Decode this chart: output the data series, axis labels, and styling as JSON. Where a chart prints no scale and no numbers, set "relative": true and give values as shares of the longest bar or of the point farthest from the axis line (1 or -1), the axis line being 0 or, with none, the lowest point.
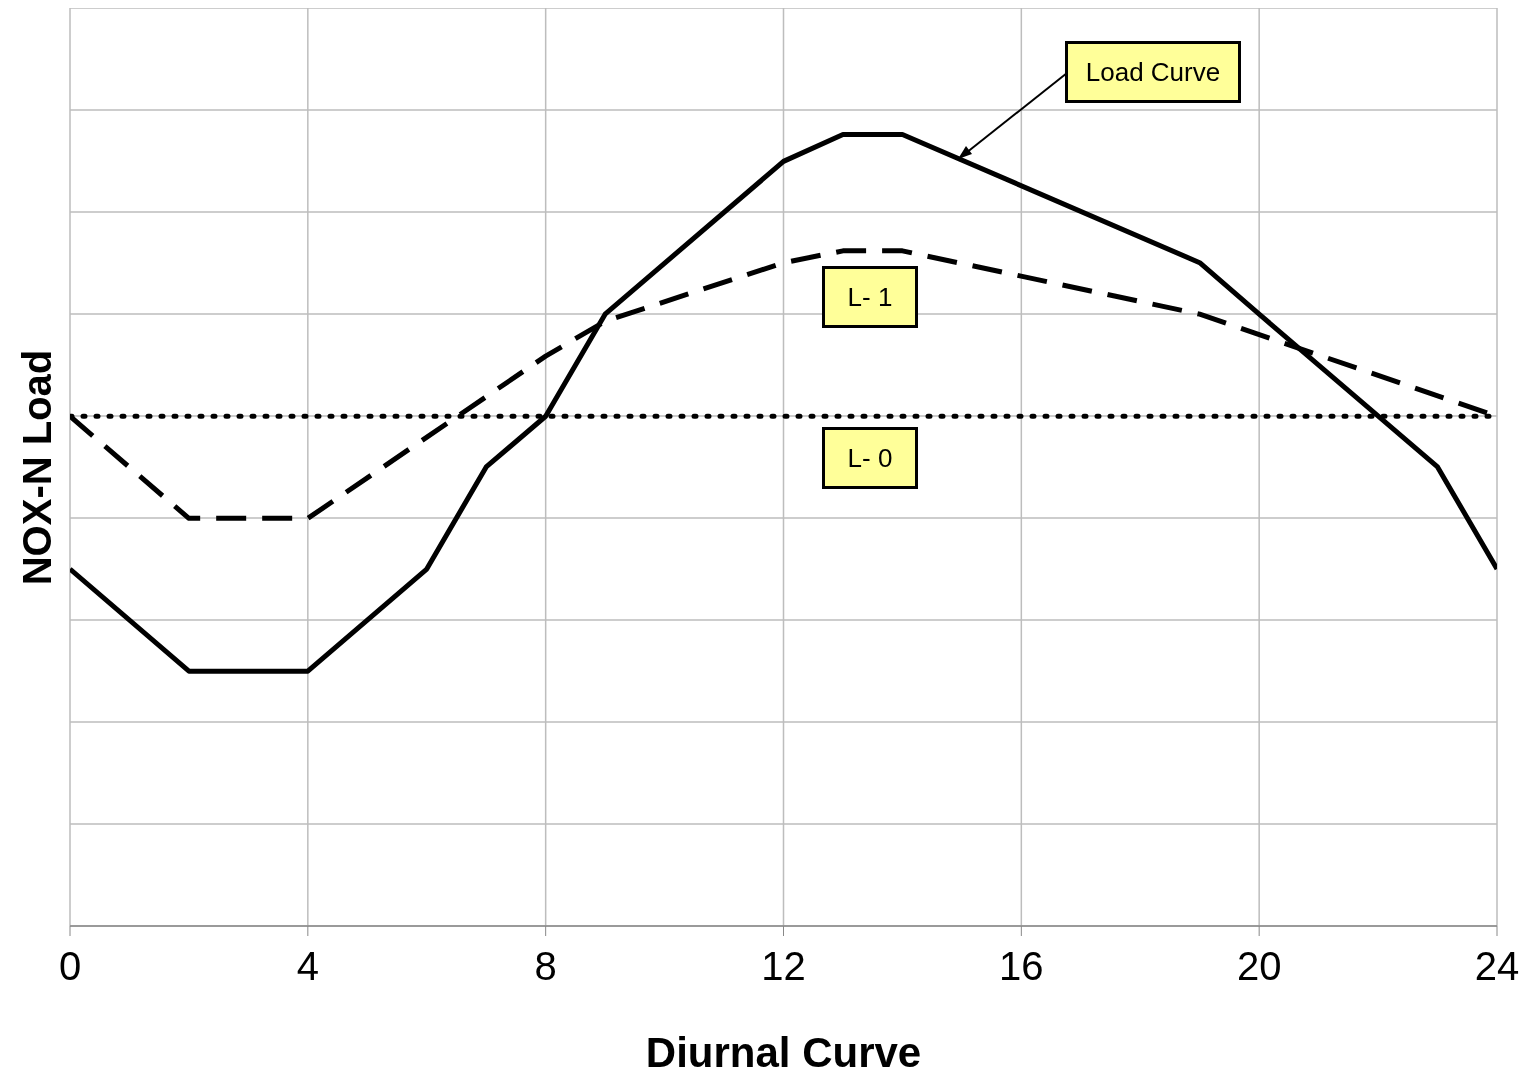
{
  "chart_data": {
    "type": "line",
    "xlabel": "Diurnal Curve",
    "ylabel": "NOX-N Load",
    "relative": true,
    "xlim": [
      0,
      24
    ],
    "xticks": [
      0,
      4,
      8,
      12,
      16,
      20,
      24
    ],
    "grid": true,
    "marker": "none",
    "series": [
      {
        "name": "Load Curve",
        "color": "#000000",
        "line_style": "solid",
        "x": [
          0,
          2,
          4,
          6,
          7,
          8,
          9,
          12,
          13,
          14,
          19,
          20,
          23,
          24
        ],
        "values": [
          0.451,
          0.322,
          0.322,
          0.451,
          0.58,
          0.644,
          0.773,
          0.966,
          1,
          1,
          0.838,
          0.773,
          0.58,
          0.451
        ]
      },
      {
        "name": "L- 1",
        "color": "#000000",
        "line_style": "dashed",
        "x": [
          0,
          2,
          4,
          8,
          9,
          12,
          13,
          14,
          19,
          24
        ],
        "values": [
          0.644,
          0.515,
          0.515,
          0.72,
          0.764,
          0.838,
          0.853,
          0.853,
          0.773,
          0.644
        ]
      },
      {
        "name": "L- 0",
        "color": "#000000",
        "line_style": "dotted",
        "x": [
          0,
          24
        ],
        "values": [
          0.644,
          0.644
        ]
      }
    ]
  }
}
